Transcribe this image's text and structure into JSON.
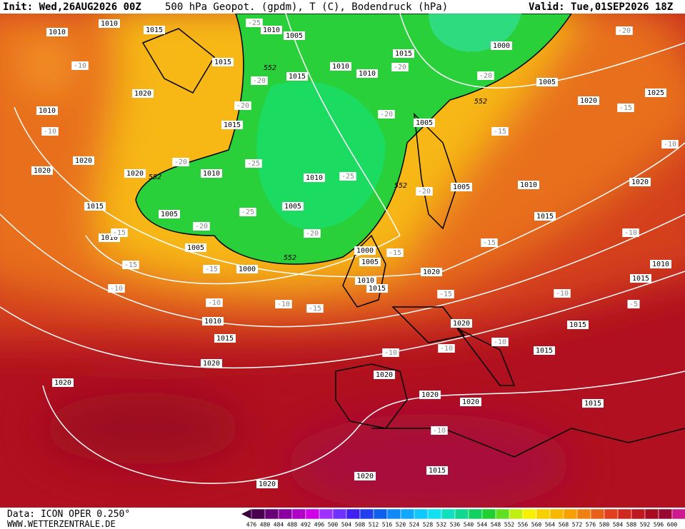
{
  "header": {
    "init": "Init: Wed,26AUG2026 00Z",
    "title": "500 hPa Geopot. (gpdm), T (C), Bodendruck (hPa)",
    "valid": "Valid: Tue,01SEP2026 18Z"
  },
  "isobar_labels": [
    "1010",
    "1010",
    "1015",
    "1010",
    "1005",
    "1015",
    "1000",
    "1015",
    "1015",
    "1010",
    "1010",
    "1020",
    "1010",
    "1005",
    "1020",
    "1025",
    "1015",
    "1005",
    "1020",
    "1020",
    "1020",
    "1010",
    "1010",
    "1005",
    "1010",
    "1020",
    "1015",
    "1005",
    "1005",
    "1015",
    "1010",
    "1005",
    "1000",
    "1005",
    "1000",
    "1020",
    "1010",
    "1015",
    "1015",
    "1010",
    "1010",
    "1015",
    "1020",
    "1015",
    "1015",
    "1020",
    "1020",
    "1020",
    "1020",
    "1020",
    "1015",
    "1015",
    "1020",
    "1020"
  ],
  "temperature_labels": [
    "-25",
    "-20",
    "-10",
    "-20",
    "-20",
    "-20",
    "-20",
    "-20",
    "-15",
    "-15",
    "-10",
    "-10",
    "-20",
    "-25",
    "-25",
    "-20",
    "-15",
    "-20",
    "-25",
    "-20",
    "-15",
    "-15",
    "-10",
    "-15",
    "-15",
    "-10",
    "-10",
    "-15",
    "-10",
    "-10",
    "-15",
    "-5",
    "-10",
    "-10",
    "-10",
    "-10"
  ],
  "height_labels": [
    "552",
    "552",
    "552",
    "552",
    "552"
  ],
  "colorbar": {
    "labels": [
      476,
      480,
      484,
      488,
      492,
      496,
      500,
      504,
      508,
      512,
      516,
      520,
      524,
      528,
      532,
      536,
      540,
      544,
      548,
      552,
      556,
      560,
      564,
      568,
      572,
      576,
      580,
      584,
      588,
      592,
      596,
      600
    ]
  },
  "footer": {
    "data": "Data: ICON OPER 0.250°",
    "website": "WWW.WETTERZENTRALE.DE"
  }
}
